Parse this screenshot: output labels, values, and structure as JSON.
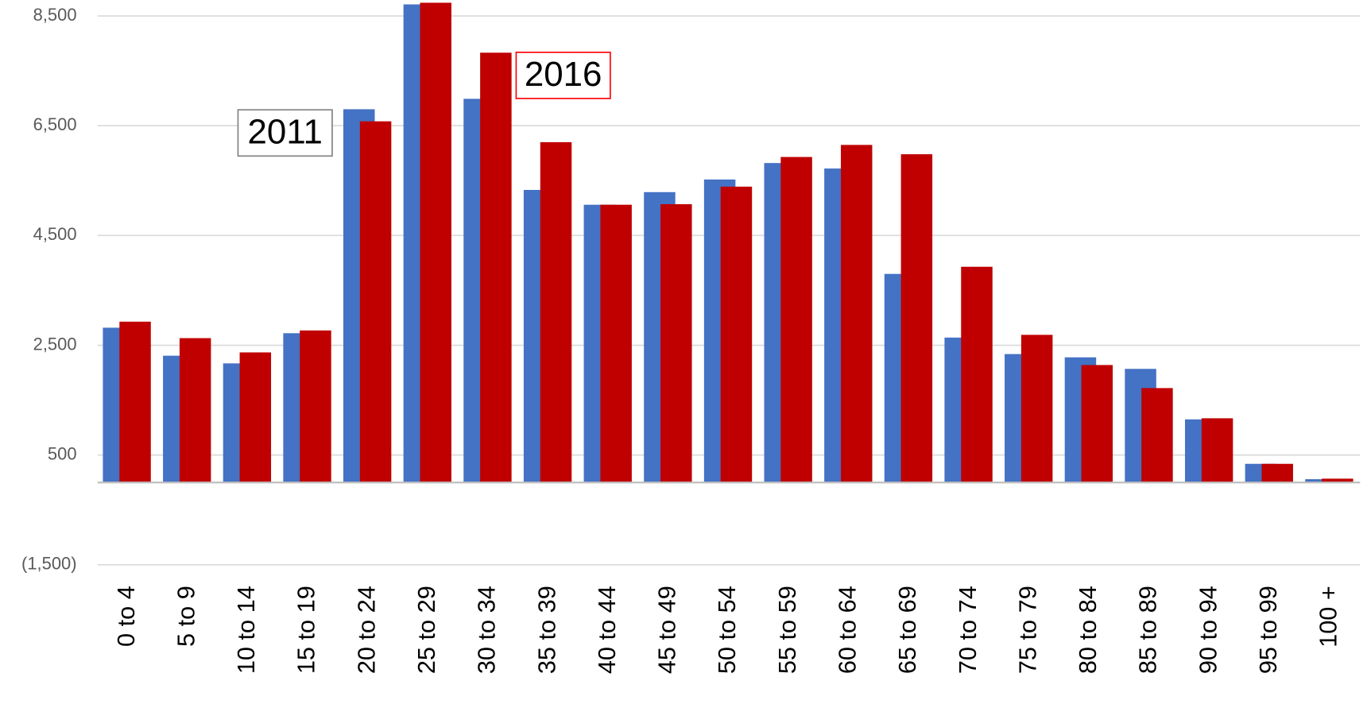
{
  "chart_data": {
    "type": "bar",
    "categories": [
      "0 to 4",
      "5 to 9",
      "10 to 14",
      "15 to 19",
      "20 to 24",
      "25 to 29",
      "30 to 34",
      "35 to 39",
      "40 to 44",
      "45 to 49",
      "50 to 54",
      "55 to 59",
      "60 to 64",
      "65 to 69",
      "70 to 74",
      "75 to 79",
      "80 to 84",
      "85 to 89",
      "90 to 94",
      "95 to 99",
      "100 +"
    ],
    "series": [
      {
        "name": "2011",
        "color": "#4472c4",
        "values": [
          2820,
          2310,
          2170,
          2720,
          6800,
          8710,
          6990,
          5330,
          5060,
          5290,
          5520,
          5820,
          5720,
          3800,
          2640,
          2340,
          2280,
          2070,
          1150,
          340,
          60
        ]
      },
      {
        "name": "2016",
        "color": "#c00000",
        "values": [
          2930,
          2630,
          2370,
          2770,
          6580,
          8740,
          7830,
          6200,
          5060,
          5070,
          5390,
          5930,
          6150,
          5980,
          3930,
          2690,
          2140,
          1720,
          1170,
          340,
          70
        ]
      }
    ],
    "ylim": [
      -1500,
      8790
    ],
    "yticks": [
      {
        "value": -1500,
        "label": "(1,500)"
      },
      500,
      {
        "value": 2500,
        "label": "2,500"
      },
      {
        "value": 4500,
        "label": "4,500"
      },
      {
        "value": 6500,
        "label": "6,500"
      },
      {
        "value": 8500,
        "label": "8,500"
      }
    ],
    "grid": true
  }
}
